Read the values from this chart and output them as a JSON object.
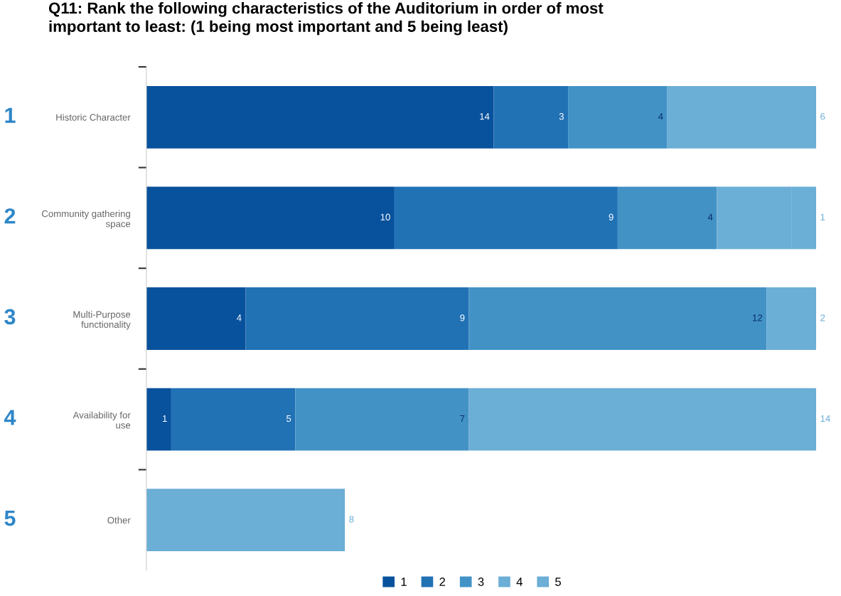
{
  "chart_data": {
    "type": "bar",
    "orientation": "horizontal",
    "stacked": true,
    "title": "Q11: Rank the following characteristics of the Auditorium in order of most\nimportant to least: (1 being most important and 5 being least)",
    "categories": [
      "Historic Character",
      "Community gathering\nspace",
      "Multi-Purpose\nfunctionality",
      "Availability for\nuse",
      "Other"
    ],
    "series": [
      {
        "name": "1",
        "color": "#08519c",
        "values": [
          14,
          10,
          4,
          1,
          null
        ],
        "value_labels": [
          "14",
          "10",
          "4",
          "1",
          null
        ]
      },
      {
        "name": "2",
        "color": "#2171b5",
        "values": [
          3,
          9,
          9,
          5,
          null
        ],
        "value_labels": [
          "3",
          "9",
          "9",
          "5",
          null
        ]
      },
      {
        "name": "3",
        "color": "#4292c6",
        "values": [
          4,
          4,
          12,
          7,
          null
        ],
        "value_labels": [
          "4",
          "4",
          "12",
          "7",
          null
        ]
      },
      {
        "name": "4",
        "color": "#6baed6",
        "values": [
          6,
          3,
          2,
          14,
          null
        ],
        "value_labels": [
          "6",
          null,
          "2",
          "14",
          null
        ]
      },
      {
        "name": "5",
        "color": "#6baed6",
        "values": [
          null,
          1,
          null,
          null,
          8
        ],
        "value_labels": [
          null,
          "1",
          null,
          null,
          "8"
        ]
      }
    ],
    "xlim": [
      0,
      27
    ],
    "tick_labels": "y",
    "legend": "bottom",
    "annotations": [
      "1",
      "2",
      "3",
      "4",
      "5"
    ]
  }
}
